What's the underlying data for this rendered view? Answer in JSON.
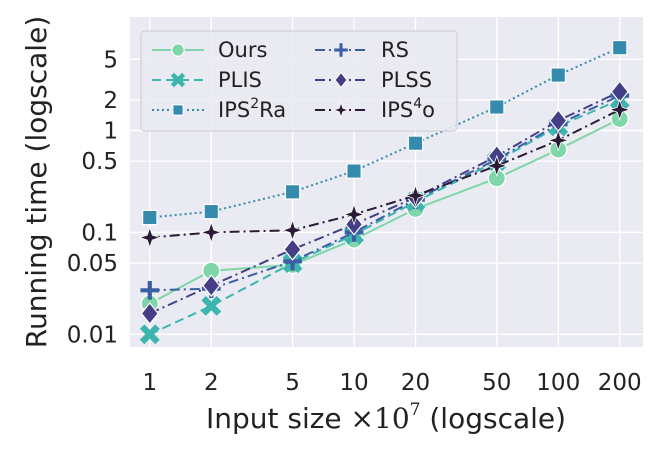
{
  "chart_data": {
    "type": "line",
    "xlabel": {
      "text": "Input size ",
      "math_base": "×10",
      "math_exp": "7",
      "suffix": " (logscale)"
    },
    "ylabel": "Running time (logscale)",
    "x_scale": "log",
    "y_scale": "log",
    "xlim": [
      0.8,
      260
    ],
    "ylim": [
      0.0075,
      13
    ],
    "grid": true,
    "legend_position": "upper-left, two columns",
    "x_ticks": [
      {
        "value": 1,
        "label": "1"
      },
      {
        "value": 2,
        "label": "2"
      },
      {
        "value": 5,
        "label": "5"
      },
      {
        "value": 10,
        "label": "10"
      },
      {
        "value": 20,
        "label": "20"
      },
      {
        "value": 50,
        "label": "50"
      },
      {
        "value": 100,
        "label": "100"
      },
      {
        "value": 200,
        "label": "200"
      }
    ],
    "y_ticks": [
      {
        "value": 0.01,
        "label": "0.01"
      },
      {
        "value": 0.05,
        "label": "0.05"
      },
      {
        "value": 0.1,
        "label": "0.1"
      },
      {
        "value": 0.5,
        "label": "0.5"
      },
      {
        "value": 1,
        "label": "1"
      },
      {
        "value": 2,
        "label": "2"
      },
      {
        "value": 5,
        "label": "5"
      }
    ],
    "x": [
      1,
      2,
      5,
      10,
      20,
      50,
      100,
      200
    ],
    "series": [
      {
        "name": "Ours",
        "label_base": "Ours",
        "label_sup": "",
        "color": "#7fd6a8",
        "dash": "",
        "marker": "circle",
        "values": [
          0.02,
          0.042,
          0.048,
          0.085,
          0.17,
          0.34,
          0.65,
          1.3
        ]
      },
      {
        "name": "PLIS",
        "label_base": "PLIS",
        "label_sup": "",
        "color": "#3bb5ad",
        "dash": "9,5",
        "marker": "x",
        "values": [
          0.01,
          0.019,
          0.05,
          0.095,
          0.2,
          0.5,
          1.1,
          2.0
        ]
      },
      {
        "name": "IPS²Ra",
        "label_base": "IPS",
        "label_sup": "2",
        "label_tail": "Ra",
        "color": "#358bad",
        "dash": "2,3",
        "marker": "square",
        "values": [
          0.14,
          0.16,
          0.25,
          0.4,
          0.75,
          1.7,
          3.5,
          6.5
        ]
      },
      {
        "name": "RS",
        "label_base": "RS",
        "label_sup": "",
        "color": "#3a5fa3",
        "dash": "10,4,2,4",
        "marker": "plus",
        "values": [
          0.027,
          0.028,
          0.052,
          0.1,
          0.21,
          0.52,
          1.15,
          2.2
        ]
      },
      {
        "name": "PLSS",
        "label_base": "PLSS",
        "label_sup": "",
        "color": "#433e85",
        "dash": "10,4,2,4",
        "marker": "diamond",
        "values": [
          0.016,
          0.03,
          0.068,
          0.12,
          0.22,
          0.56,
          1.25,
          2.4
        ]
      },
      {
        "name": "IPS⁴o",
        "label_base": "IPS",
        "label_sup": "4",
        "label_tail": "o",
        "color": "#2b1b37",
        "dash": "10,4,2,4",
        "marker": "star",
        "values": [
          0.089,
          0.1,
          0.105,
          0.15,
          0.23,
          0.45,
          0.8,
          1.6
        ]
      }
    ]
  }
}
